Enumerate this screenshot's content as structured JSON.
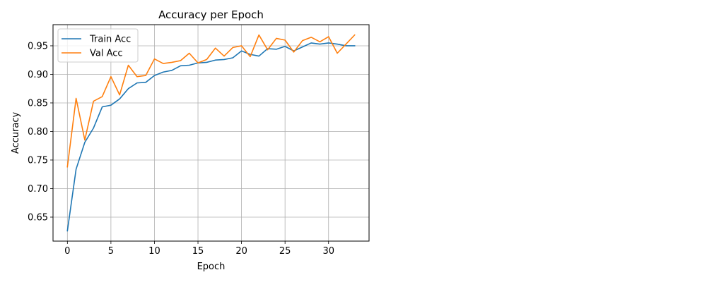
{
  "chart_data": {
    "type": "line",
    "title": "Accuracy per Epoch",
    "xlabel": "Epoch",
    "ylabel": "Accuracy",
    "xlim": [
      -1.65,
      34.65
    ],
    "ylim": [
      0.608,
      0.987
    ],
    "xticks": [
      0,
      5,
      10,
      15,
      20,
      25,
      30
    ],
    "yticks": [
      0.65,
      0.7,
      0.75,
      0.8,
      0.85,
      0.9,
      0.95
    ],
    "ytick_labels": [
      "0.65",
      "0.70",
      "0.75",
      "0.80",
      "0.85",
      "0.90",
      "0.95"
    ],
    "grid": true,
    "legend_position": "top-left",
    "x": [
      0,
      1,
      2,
      3,
      4,
      5,
      6,
      7,
      8,
      9,
      10,
      11,
      12,
      13,
      14,
      15,
      16,
      17,
      18,
      19,
      20,
      21,
      22,
      23,
      24,
      25,
      26,
      27,
      28,
      29,
      30,
      31,
      32,
      33
    ],
    "series": [
      {
        "name": "Train Acc",
        "color": "#1f77b4",
        "values": [
          0.626,
          0.734,
          0.781,
          0.806,
          0.843,
          0.846,
          0.857,
          0.875,
          0.885,
          0.886,
          0.898,
          0.904,
          0.907,
          0.915,
          0.916,
          0.92,
          0.921,
          0.925,
          0.926,
          0.929,
          0.941,
          0.935,
          0.932,
          0.945,
          0.944,
          0.949,
          0.941,
          0.948,
          0.955,
          0.953,
          0.955,
          0.953,
          0.95,
          0.95
        ]
      },
      {
        "name": "Val Acc",
        "color": "#ff7f0e",
        "values": [
          0.738,
          0.858,
          0.785,
          0.853,
          0.861,
          0.896,
          0.864,
          0.916,
          0.896,
          0.898,
          0.927,
          0.919,
          0.921,
          0.924,
          0.937,
          0.92,
          0.926,
          0.946,
          0.932,
          0.947,
          0.95,
          0.931,
          0.969,
          0.943,
          0.963,
          0.96,
          0.939,
          0.959,
          0.965,
          0.957,
          0.966,
          0.937,
          0.953,
          0.969
        ]
      }
    ]
  }
}
